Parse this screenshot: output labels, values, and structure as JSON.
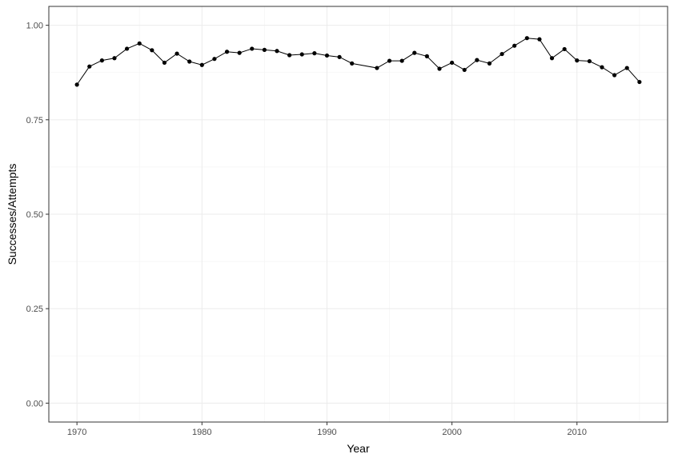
{
  "chart_data": {
    "type": "line",
    "title": "",
    "xlabel": "Year",
    "ylabel": "Successes/Attempts",
    "xlim": [
      1967.75,
      2017.25
    ],
    "ylim": [
      -0.05,
      1.05
    ],
    "x_ticks": [
      1970,
      1980,
      1990,
      2000,
      2010
    ],
    "x_tick_labels": [
      "1970",
      "1980",
      "1990",
      "2000",
      "2010"
    ],
    "y_ticks": [
      0,
      0.25,
      0.5,
      0.75,
      1
    ],
    "y_tick_labels": [
      "0.00",
      "0.25",
      "0.50",
      "0.75",
      "1.00"
    ],
    "grid": true,
    "legend": "none",
    "colors": {
      "line": "#000000",
      "grid_major": "#ebebeb",
      "grid_minor": "#f5f5f5",
      "border": "#333333"
    },
    "series": [
      {
        "x": [
          1970,
          1971,
          1972,
          1973,
          1974,
          1975,
          1976,
          1977,
          1978,
          1979,
          1980,
          1981,
          1982,
          1983,
          1984,
          1985,
          1986,
          1987,
          1988,
          1989,
          1990,
          1991,
          1992,
          1994,
          1995,
          1996,
          1997,
          1998,
          1999,
          2000,
          2001,
          2002,
          2003,
          2004,
          2005,
          2006,
          2007,
          2008,
          2009,
          2010,
          2011,
          2012,
          2013,
          2014,
          2015
        ],
        "y": [
          0.843,
          0.891,
          0.907,
          0.913,
          0.938,
          0.952,
          0.934,
          0.901,
          0.925,
          0.904,
          0.895,
          0.911,
          0.93,
          0.927,
          0.938,
          0.935,
          0.932,
          0.921,
          0.923,
          0.926,
          0.92,
          0.916,
          0.899,
          0.887,
          0.906,
          0.906,
          0.927,
          0.918,
          0.885,
          0.901,
          0.882,
          0.908,
          0.899,
          0.924,
          0.946,
          0.966,
          0.963,
          0.913,
          0.937,
          0.907,
          0.905,
          0.889,
          0.868,
          0.887,
          0.85
        ]
      }
    ]
  }
}
